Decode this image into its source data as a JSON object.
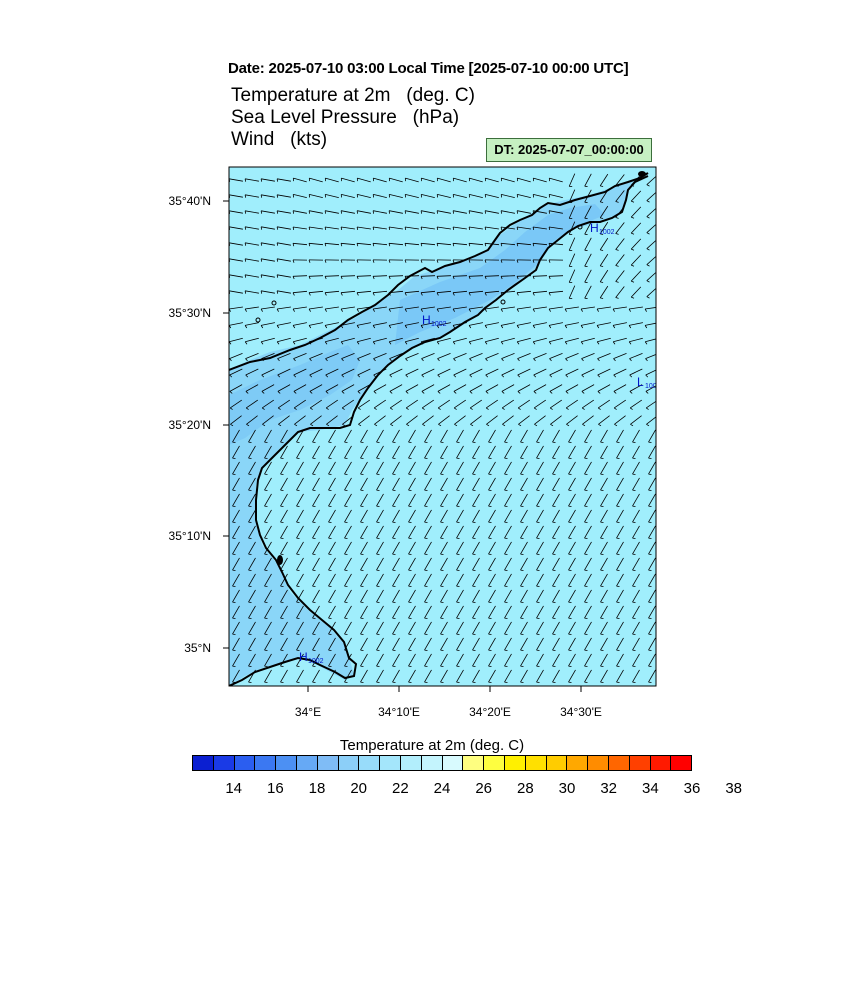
{
  "header": {
    "date_line": "Date: 2025-07-10  03:00 Local Time [2025-07-10  00:00 UTC]",
    "field_temp": "Temperature at 2m   (deg. C)",
    "field_slp": "Sea Level Pressure   (hPa)",
    "field_wind": "Wind   (kts)",
    "dt_label": "DT: 2025-07-07_00:00:00"
  },
  "map": {
    "lat_labels": [
      "35°40'N",
      "35°30'N",
      "35°20'N",
      "35°10'N",
      "35°N"
    ],
    "lon_labels": [
      "34°E",
      "34°10'E",
      "34°20'E",
      "34°30'E"
    ],
    "pressure_markers": [
      {
        "symbol": "H",
        "value": "1002"
      },
      {
        "symbol": "H",
        "value": "1002"
      },
      {
        "symbol": "H",
        "value": "1002"
      },
      {
        "symbol": "L",
        "value": "100"
      }
    ],
    "colors": {
      "sea": "#a0eefc",
      "warm_land": "#8ad6f8",
      "land": "#82c8f7",
      "coast": "#000000",
      "pressure": "#0016c8"
    }
  },
  "colorbar": {
    "title": "Temperature at 2m  (deg. C)",
    "tick_labels": [
      "14",
      "16",
      "18",
      "20",
      "22",
      "24",
      "26",
      "28",
      "30",
      "32",
      "34",
      "36",
      "38"
    ],
    "colors": [
      "#0b1fd1",
      "#1a3ae6",
      "#2b5ef0",
      "#3b78f2",
      "#4c90f3",
      "#66a9f5",
      "#7fbcf6",
      "#8ccff8",
      "#98dcfa",
      "#a4e6fb",
      "#b2eefc",
      "#c4f4fd",
      "#d8fafe",
      "#fefe80",
      "#fefe40",
      "#fff000",
      "#ffe000",
      "#ffcc00",
      "#ffa800",
      "#ff8c00",
      "#ff6600",
      "#ff4000",
      "#ff1a00",
      "#ff0000"
    ]
  }
}
